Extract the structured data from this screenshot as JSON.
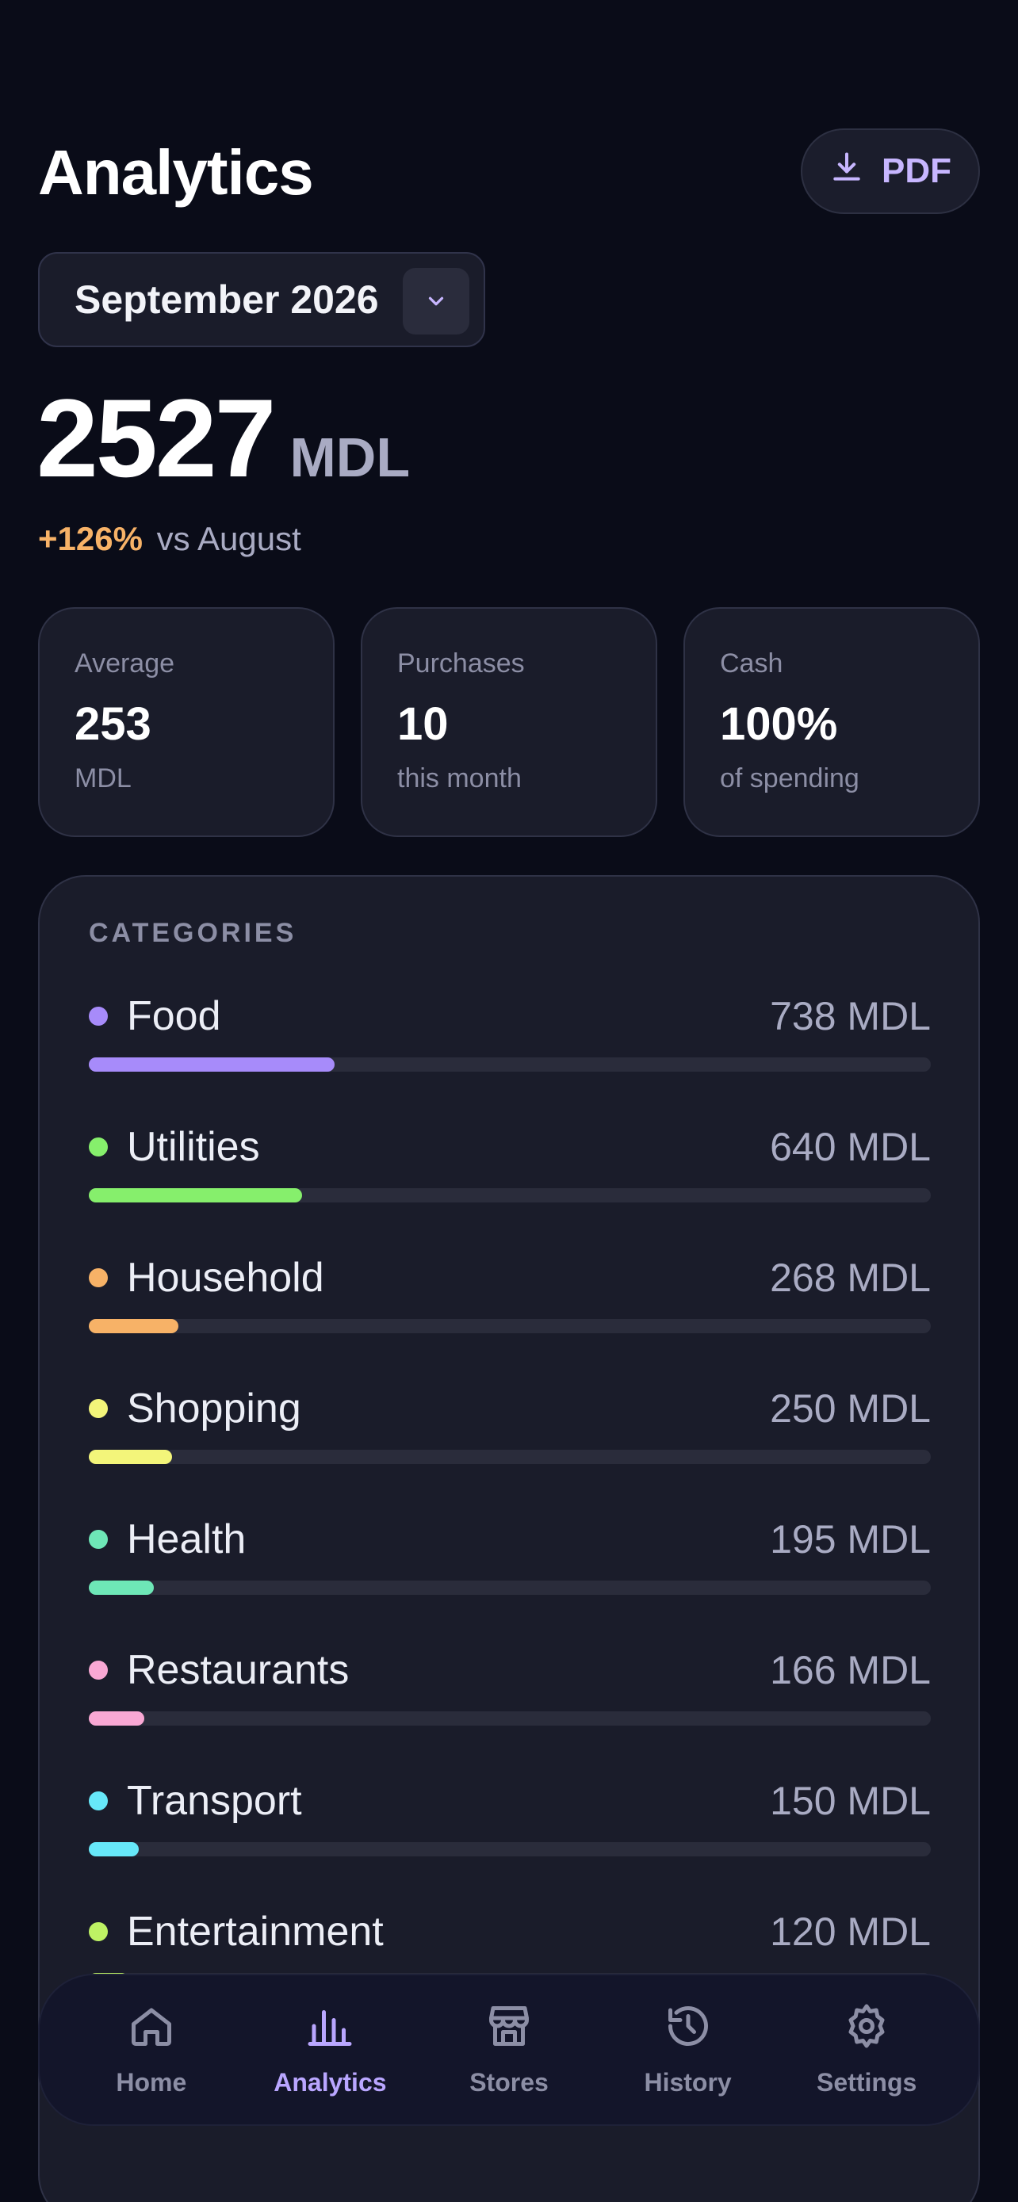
{
  "header": {
    "title": "Analytics",
    "pdf_label": "PDF"
  },
  "month_selector": {
    "value": "September 2026"
  },
  "total": {
    "amount": "2527",
    "currency": "MDL",
    "delta_value": "+126%",
    "delta_text": "vs August"
  },
  "stats": [
    {
      "label": "Average",
      "value": "253",
      "sub": "MDL"
    },
    {
      "label": "Purchases",
      "value": "10",
      "sub": "this month"
    },
    {
      "label": "Cash",
      "value": "100%",
      "sub": "of spending"
    }
  ],
  "categories": {
    "header": "CATEGORIES",
    "items": [
      {
        "name": "Food",
        "amount": "738 MDL",
        "color": "#a78bfa",
        "share": 0.292
      },
      {
        "name": "Utilities",
        "amount": "640 MDL",
        "color": "#86ef6c",
        "share": 0.253
      },
      {
        "name": "Household",
        "amount": "268 MDL",
        "color": "#f7b267",
        "share": 0.106
      },
      {
        "name": "Shopping",
        "amount": "250 MDL",
        "color": "#f3f57a",
        "share": 0.099
      },
      {
        "name": "Health",
        "amount": "195 MDL",
        "color": "#6ee7b7",
        "share": 0.077
      },
      {
        "name": "Restaurants",
        "amount": "166 MDL",
        "color": "#f9a8d4",
        "share": 0.066
      },
      {
        "name": "Transport",
        "amount": "150 MDL",
        "color": "#67e8f9",
        "share": 0.059
      },
      {
        "name": "Entertainment",
        "amount": "120 MDL",
        "color": "#bef264",
        "share": 0.047
      }
    ]
  },
  "tabbar": {
    "items": [
      {
        "label": "Home",
        "icon": "home-icon",
        "active": false
      },
      {
        "label": "Analytics",
        "icon": "bar-chart-icon",
        "active": true
      },
      {
        "label": "Stores",
        "icon": "store-icon",
        "active": false
      },
      {
        "label": "History",
        "icon": "history-icon",
        "active": false
      },
      {
        "label": "Settings",
        "icon": "gear-icon",
        "active": false
      }
    ]
  }
}
